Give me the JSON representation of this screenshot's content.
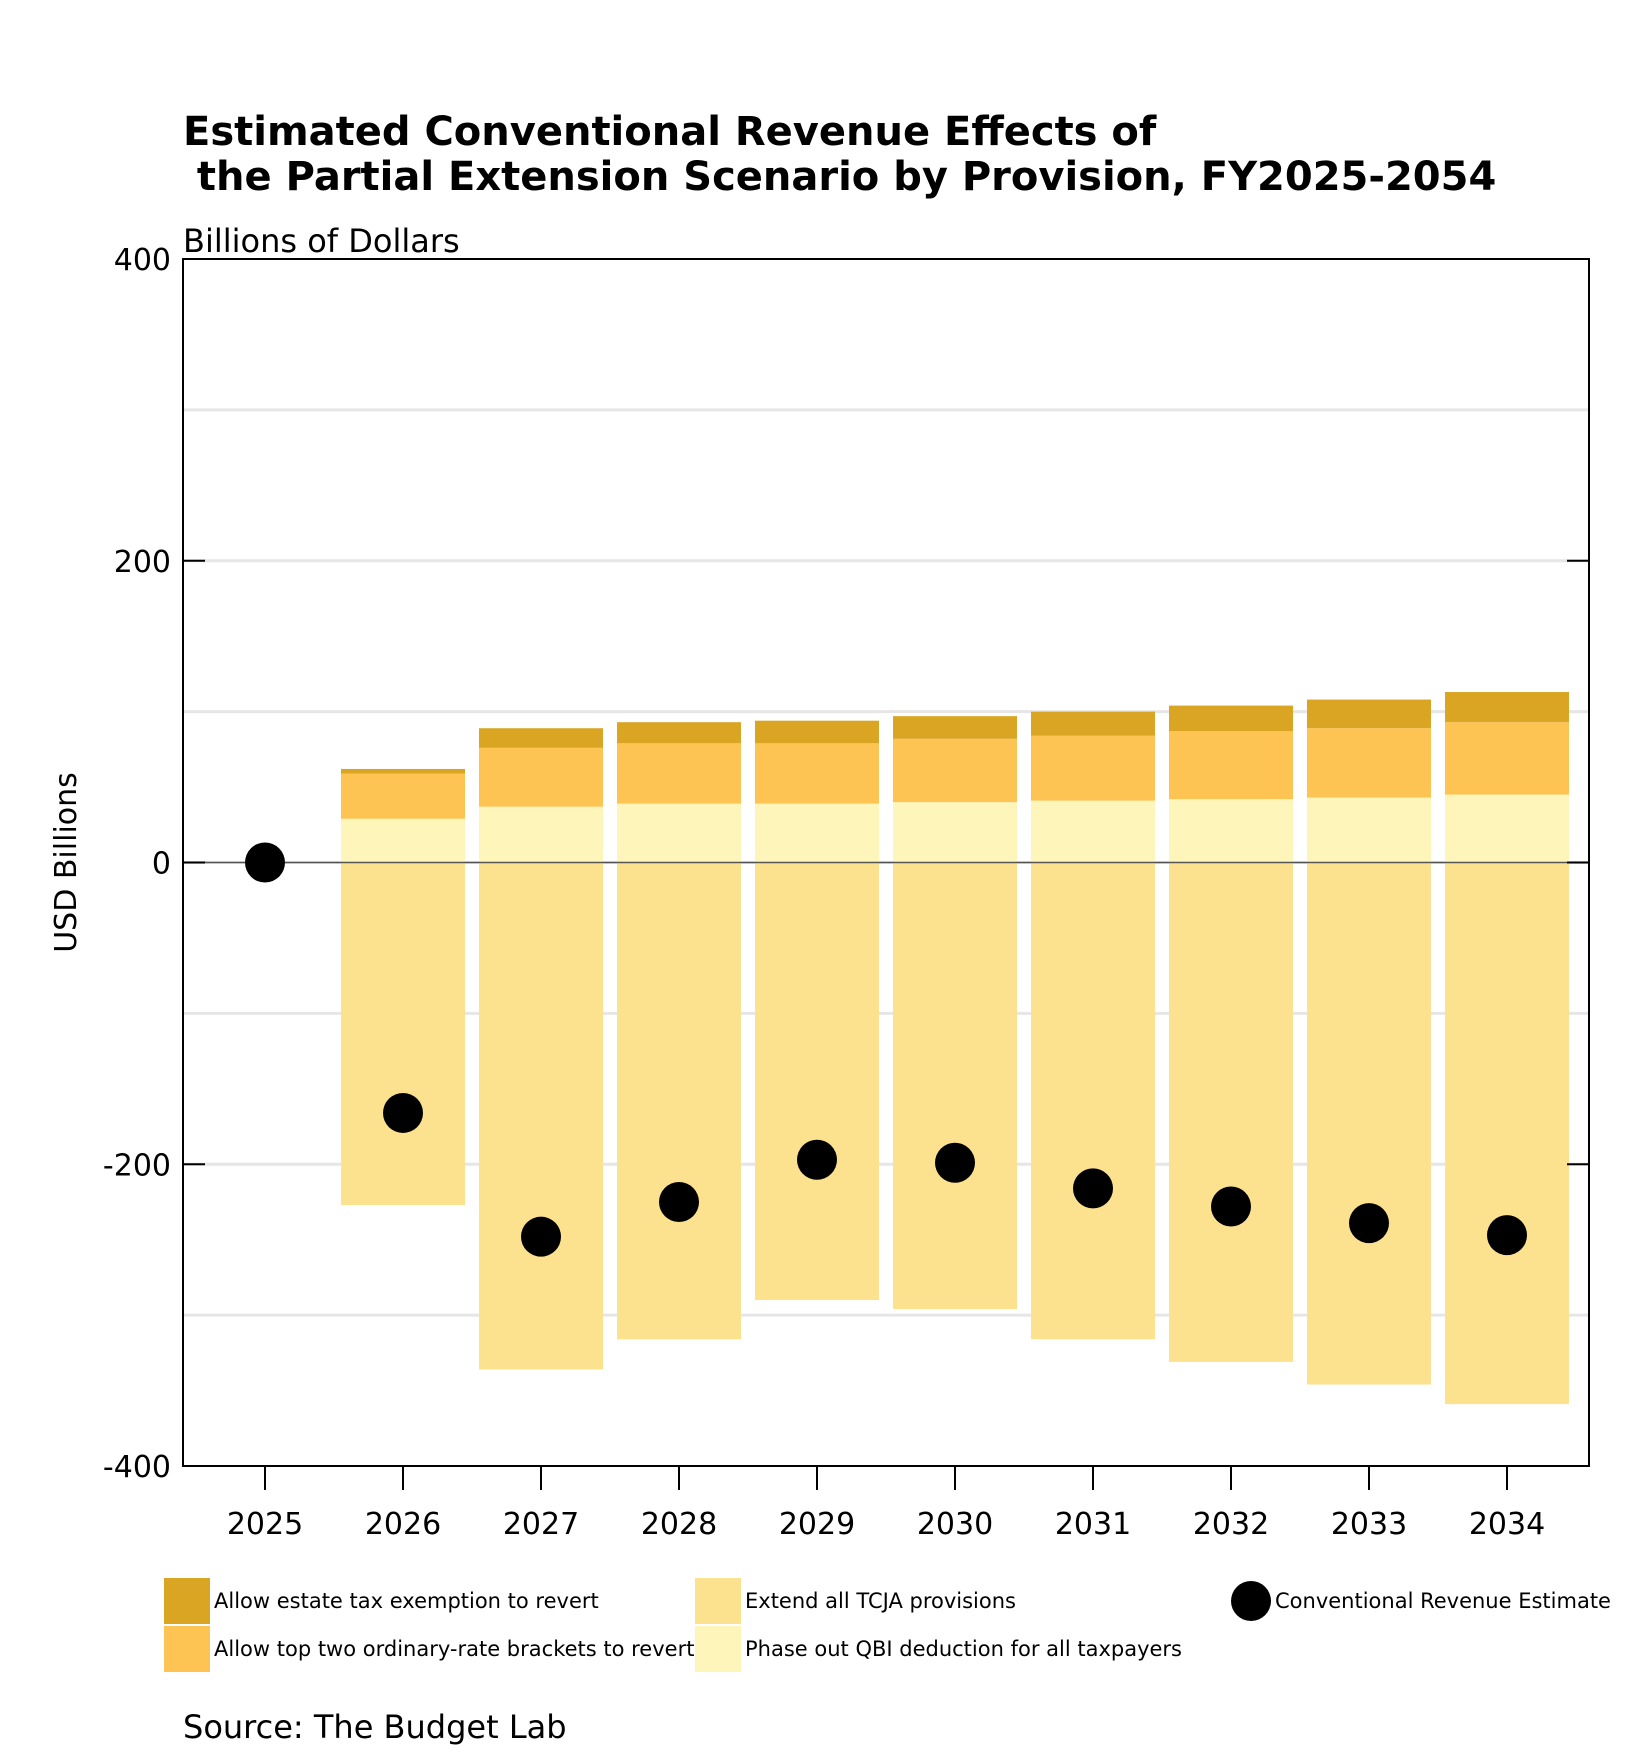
{
  "chart_data": {
    "type": "bar",
    "title": "Estimated Conventional Revenue Effects of\n the Partial Extension Scenario by Provision, FY2025-2054",
    "subtitle": "Billions of Dollars",
    "ylabel": "USD Billions",
    "xlabel": "",
    "source": "Source: The Budget Lab",
    "ylim": [
      -400,
      400
    ],
    "yticks": [
      "400",
      "200",
      "0",
      "-200",
      "-400"
    ],
    "grid": true,
    "categories": [
      "2025",
      "2026",
      "2027",
      "2028",
      "2029",
      "2030",
      "2031",
      "2032",
      "2033",
      "2034"
    ],
    "series": [
      {
        "name": "Extend all TCJA provisions",
        "color": "#FCE28F",
        "values": [
          0,
          -227,
          -336,
          -316,
          -290,
          -296,
          -316,
          -331,
          -346,
          -359
        ]
      },
      {
        "name": "Phase out QBI deduction for all taxpayers",
        "color": "#FEF5BA",
        "values": [
          0,
          29,
          37,
          39,
          39,
          40,
          41,
          42,
          43,
          45
        ]
      },
      {
        "name": "Allow top two ordinary-rate brackets to revert",
        "color": "#FDC454",
        "values": [
          0,
          30,
          39,
          40,
          40,
          42,
          43,
          45,
          46,
          48
        ]
      },
      {
        "name": "Allow estate tax exemption to revert",
        "color": "#DAA523",
        "values": [
          0,
          3,
          13,
          14,
          15,
          15,
          16,
          17,
          19,
          20
        ]
      }
    ],
    "points": {
      "name": "Conventional Revenue Estimate",
      "color": "#000000",
      "values": [
        0,
        -166,
        -248,
        -225,
        -197,
        -199,
        -216,
        -228,
        -239,
        -247
      ]
    },
    "legend_position": "bottom"
  }
}
